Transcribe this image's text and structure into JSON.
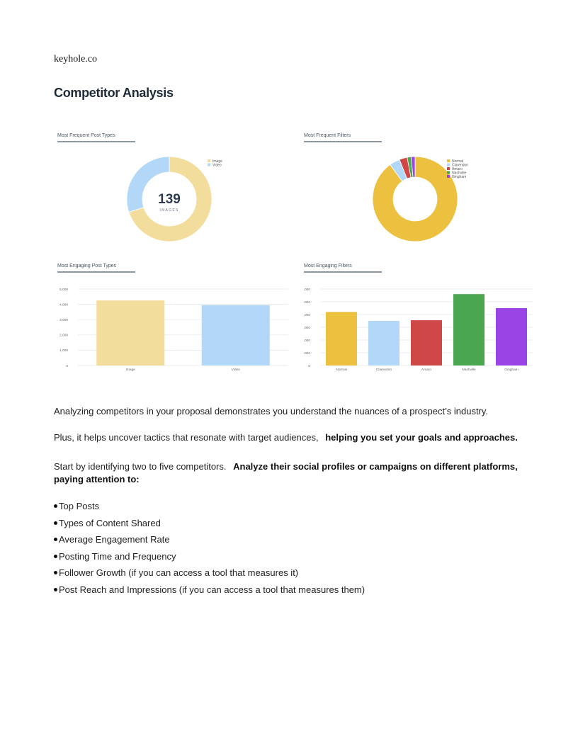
{
  "brand": "keyhole.co",
  "page_title": "Competitor Analysis",
  "colors": {
    "image": "#f3dd9c",
    "video": "#b3d7f7",
    "normal": "#ecc140",
    "clarendon": "#b3d7f7",
    "amaro": "#cf4848",
    "nashville": "#4ba74f",
    "gingham": "#9b44e6",
    "label": "#2e3b4e",
    "rule": "#8d97a4"
  },
  "chart_data": [
    {
      "type": "pie",
      "title": "Most Frequent Post Types",
      "center_value": "139",
      "center_label": "IMAGES",
      "categories": [
        "Image",
        "Video"
      ],
      "values": [
        70,
        30
      ],
      "legend": "right"
    },
    {
      "type": "pie",
      "title": "Most Frequent Filters",
      "categories": [
        "Normal",
        "Clarendon",
        "Amaro",
        "Nashville",
        "Gingham"
      ],
      "values": [
        90,
        4,
        3,
        1.5,
        1.5
      ],
      "legend": "right"
    },
    {
      "type": "bar",
      "title": "Most Engaging Post Types",
      "categories": [
        "Image",
        "Video"
      ],
      "values": [
        4250,
        3950
      ],
      "yticks": [
        "0",
        "1,000",
        "2,000",
        "3,000",
        "4,000",
        "5,000"
      ],
      "ylim": [
        0,
        5000
      ],
      "grid": true
    },
    {
      "type": "bar",
      "title": "Most Engaging Filters",
      "categories": [
        "Normal",
        "Clarendon",
        "Amaro",
        "Nashville",
        "Gingham"
      ],
      "values": [
        4200,
        3500,
        3550,
        5600,
        4500
      ],
      "yticks": [
        "0",
        "1,000",
        "2,000",
        "3,000",
        "4,000",
        "5,000",
        "6,000"
      ],
      "ylim": [
        0,
        6000
      ],
      "grid": true
    }
  ],
  "paragraphs": {
    "p1": "Analyzing competitors in your proposal demonstrates you understand the nuances of a prospect’s industry.",
    "p2_plain": "Plus, it helps uncover tactics that resonate with target audiences,",
    "p2_bold": "helping you set your goals and approaches.",
    "p3_plain": "Start by identifying two to five competitors.",
    "p3_bold_line1": "Analyze their social profiles or campaigns on different platforms,",
    "p3_bold_line2": "paying attention to:"
  },
  "bullets": [
    "Top Posts",
    "Types of Content Shared",
    "Average Engagement Rate",
    "Posting Time and Frequency",
    "Follower Growth (if you can access a tool that measures it)",
    "Post Reach and Impressions (if you can access a tool that measures them)"
  ]
}
